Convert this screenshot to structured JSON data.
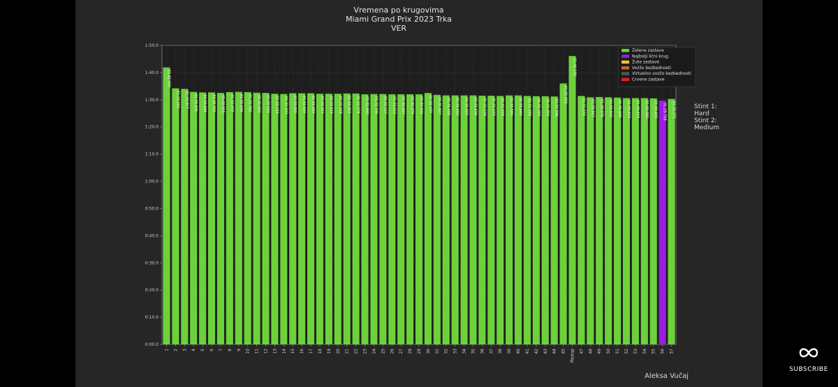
{
  "chart_data": {
    "type": "bar",
    "title": [
      "Vremena po krugovima",
      "Miami Grand Prix 2023 Trka",
      "VER"
    ],
    "y_tick_labels": [
      "0:00.0",
      "0:10.0",
      "0:20.0",
      "0:30.0",
      "0:40.0",
      "0:50.0",
      "1:00.0",
      "1:10.0",
      "1:20.0",
      "1:30.0",
      "1:40.0",
      "1:50.0"
    ],
    "ylim": [
      0,
      110
    ],
    "grid": true,
    "categories": [
      "1",
      "2",
      "3",
      "4",
      "5",
      "6",
      "7",
      "8",
      "9",
      "10",
      "11",
      "12",
      "13",
      "14",
      "15",
      "16",
      "17",
      "18",
      "19",
      "20",
      "21",
      "22",
      "23",
      "24",
      "25",
      "26",
      "27",
      "28",
      "29",
      "30",
      "31",
      "32",
      "33",
      "34",
      "35",
      "36",
      "37",
      "38",
      "39",
      "40",
      "41",
      "42",
      "43",
      "44",
      "45",
      "Pitstop",
      "47",
      "48",
      "49",
      "50",
      "51",
      "52",
      "53",
      "54",
      "55",
      "56",
      "57"
    ],
    "values": [
      101.9,
      94.2,
      94.0,
      92.9,
      92.7,
      92.7,
      92.5,
      92.8,
      92.9,
      92.8,
      92.6,
      92.5,
      92.2,
      92.1,
      92.4,
      92.4,
      92.4,
      92.2,
      92.2,
      92.2,
      92.3,
      92.3,
      92.0,
      92.1,
      92.1,
      92.0,
      92.0,
      92.0,
      92.0,
      92.5,
      91.8,
      91.6,
      91.6,
      91.6,
      91.6,
      91.5,
      91.5,
      91.4,
      91.6,
      91.6,
      91.4,
      91.3,
      91.3,
      91.2,
      96.0,
      106.1,
      91.4,
      90.9,
      91.0,
      90.9,
      90.8,
      90.6,
      90.6,
      90.6,
      90.5,
      89.7,
      90.3
    ],
    "bar_labels": [
      "01:41.900",
      "01:34.200",
      "01:34.017",
      "01:32.935",
      "01:32.694",
      "01:32.703",
      "01:32.555",
      "01:32.847",
      "01:32.948",
      "01:32.780",
      "01:32.604",
      "01:32.504",
      "01:32.156",
      "01:32.103",
      "01:32.355",
      "01:32.407",
      "01:32.383",
      "01:32.201",
      "01:32.234",
      "01:32.248",
      "01:32.303",
      "01:32.279",
      "01:31.960",
      "01:32.106",
      "01:32.117",
      "01:32.012",
      "01:32.007",
      "01:31.976",
      "01:32.002",
      "01:32.477",
      "01:31.827",
      "01:31.608",
      "01:31.593",
      "01:31.602",
      "01:31.639",
      "01:31.524",
      "01:31.529",
      "01:31.428",
      "01:31.586",
      "01:31.644",
      "01:31.358",
      "01:31.284",
      "01:31.304",
      "01:31.206",
      "01:35.958",
      "01:46.100",
      "01:31.374",
      "01:30.867",
      "01:30.976",
      "01:30.943",
      "01:30.808",
      "01:30.612",
      "01:30.632",
      "01:30.582",
      "01:30.465",
      "01:29.708",
      "01:30.271"
    ],
    "bar_flags": [
      "green",
      "green",
      "green",
      "green",
      "green",
      "green",
      "green",
      "green",
      "green",
      "green",
      "green",
      "green",
      "green",
      "green",
      "green",
      "green",
      "green",
      "green",
      "green",
      "green",
      "green",
      "green",
      "green",
      "green",
      "green",
      "green",
      "green",
      "green",
      "green",
      "green",
      "green",
      "green",
      "green",
      "green",
      "green",
      "green",
      "green",
      "green",
      "green",
      "green",
      "green",
      "green",
      "green",
      "green",
      "green",
      "green",
      "green",
      "green",
      "green",
      "green",
      "green",
      "green",
      "green",
      "green",
      "green",
      "fastest",
      "green"
    ],
    "legend": {
      "placement": "top-right",
      "entries": [
        {
          "label": "Zelene zastave",
          "color": "#6cd13a"
        },
        {
          "label": "Najbolji lični krug",
          "color": "#9b1de0"
        },
        {
          "label": "Žute zastave",
          "color": "#e3c43b"
        },
        {
          "label": "Vozilo bezbednosti",
          "color": "#c8662a"
        },
        {
          "label": "Virtuelno vozilo bezbednosti",
          "color": "#555555"
        },
        {
          "label": "Crvene zastave",
          "color": "#e02020"
        }
      ]
    },
    "side_annotation": [
      "Stint 1:",
      "Hard",
      "Stint 2:",
      "Medium"
    ],
    "colors": {
      "green": "#6cd13a",
      "fastest": "#9b1de0",
      "grid": "#3d3d3d",
      "axis": "#888888"
    }
  },
  "author": "Aleksa Vučaj",
  "subscribe_label": "SUBSCRIBE"
}
